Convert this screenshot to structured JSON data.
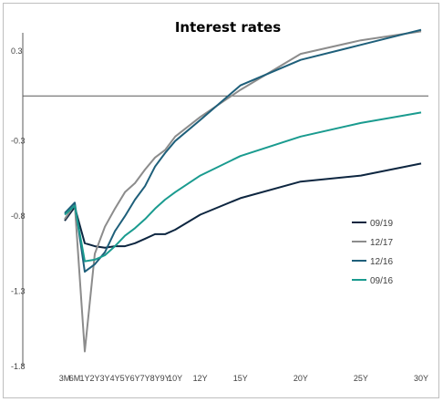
{
  "chart_data": {
    "type": "line",
    "title": "Interest rates",
    "xlabel": "",
    "ylabel": "",
    "x": [
      "3M",
      "6M",
      "1Y",
      "2Y",
      "3Y",
      "4Y",
      "5Y",
      "6Y",
      "7Y",
      "8Y",
      "9Y",
      "10Y",
      "12Y",
      "15Y",
      "20Y",
      "25Y",
      "30Y"
    ],
    "x_years": [
      0.25,
      0.5,
      1,
      2,
      3,
      4,
      5,
      6,
      7,
      8,
      9,
      10,
      12,
      15,
      20,
      25,
      30
    ],
    "x_positions": [
      0,
      1,
      2,
      3,
      4,
      5,
      6,
      7,
      8,
      9,
      10,
      11,
      13.5,
      17.5,
      23.5,
      29.5,
      35.5
    ],
    "yticks": [
      0.3,
      -0.3,
      -0.8,
      -1.3,
      -1.8
    ],
    "ytick_labels": [
      "0.3",
      "-0.3",
      "-0.8",
      "-1.3",
      "-1.8"
    ],
    "ylim": [
      -1.8,
      0.42
    ],
    "grid": false,
    "legend_position": "bottom-right",
    "series": [
      {
        "name": "09/19",
        "color": "#0d2640",
        "values": [
          -0.83,
          -0.74,
          -0.98,
          -1.0,
          -1.01,
          -1.0,
          -1.0,
          -0.98,
          -0.95,
          -0.92,
          -0.92,
          -0.89,
          -0.79,
          -0.68,
          -0.57,
          -0.53,
          -0.45
        ]
      },
      {
        "name": "12/17",
        "color": "#8c8c8c",
        "values": [
          -0.82,
          -0.72,
          -1.7,
          -1.05,
          -0.87,
          -0.75,
          -0.64,
          -0.58,
          -0.49,
          -0.41,
          -0.36,
          -0.27,
          -0.14,
          0.04,
          0.28,
          0.37,
          0.43
        ]
      },
      {
        "name": "12/16",
        "color": "#1e5f7a",
        "values": [
          -0.78,
          -0.71,
          -1.17,
          -1.12,
          -1.04,
          -0.9,
          -0.8,
          -0.69,
          -0.6,
          -0.47,
          -0.38,
          -0.3,
          -0.16,
          0.07,
          0.24,
          0.34,
          0.44
        ]
      },
      {
        "name": "09/16",
        "color": "#1a9b8f",
        "values": [
          -0.79,
          -0.73,
          -1.1,
          -1.09,
          -1.06,
          -1.0,
          -0.93,
          -0.88,
          -0.82,
          -0.75,
          -0.69,
          -0.64,
          -0.53,
          -0.4,
          -0.27,
          -0.18,
          -0.11
        ]
      }
    ]
  }
}
